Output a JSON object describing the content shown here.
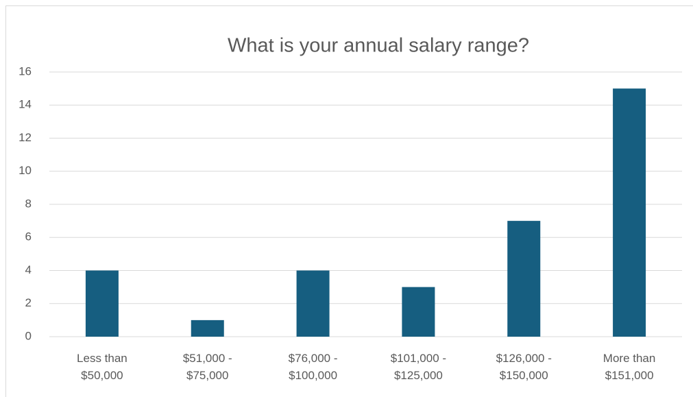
{
  "chart_data": {
    "type": "bar",
    "title": "What is your annual salary range?",
    "categories": [
      "Less than $50,000",
      "$51,000 - $75,000",
      "$76,000 - $100,000",
      "$101,000 - $125,000",
      "$126,000 - $150,000",
      "More than $151,000"
    ],
    "values": [
      4,
      1,
      4,
      3,
      7,
      15
    ],
    "color": "#165e80",
    "ylim": [
      0,
      16
    ],
    "yticks": [
      0,
      2,
      4,
      6,
      8,
      10,
      12,
      14,
      16
    ],
    "grid": true
  }
}
